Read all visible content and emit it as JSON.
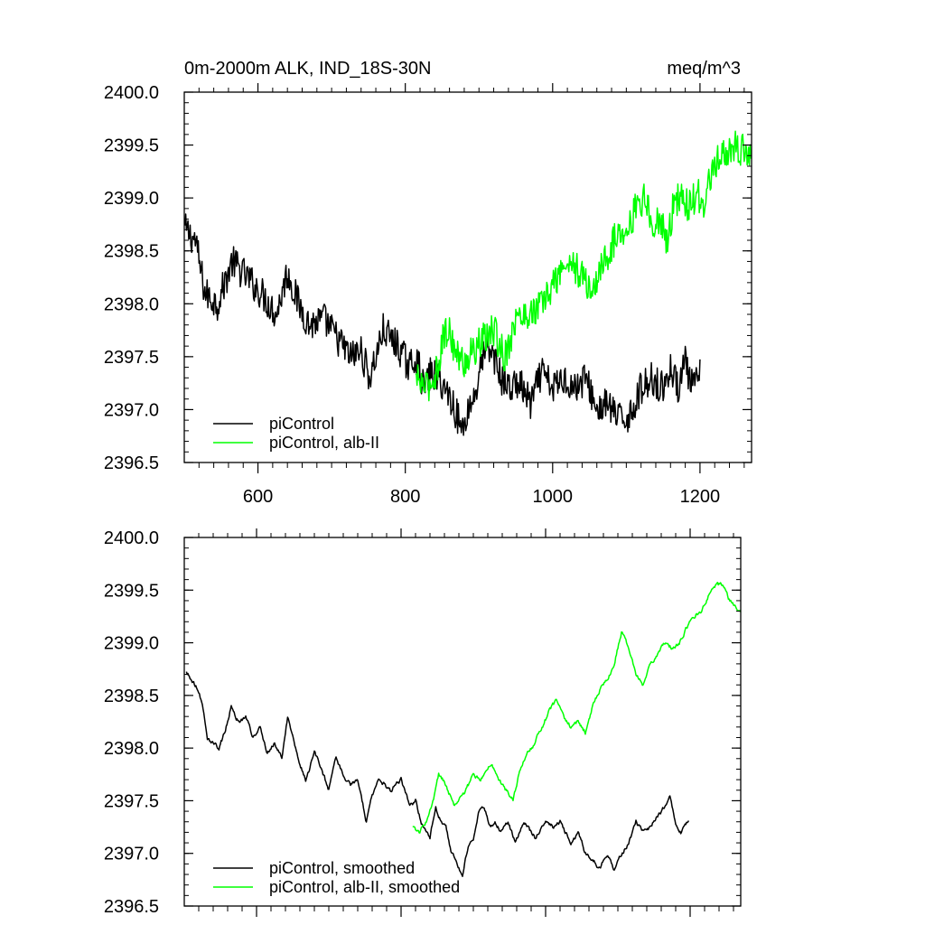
{
  "figure": {
    "title_left": "0m-2000m ALK, IND_18S-30N",
    "title_right": "meq/m^3"
  },
  "colors": {
    "piControl": "#000000",
    "alb_II": "#00ff00",
    "axes": "#000000"
  },
  "chart_data": [
    {
      "type": "line",
      "panel": "top",
      "title": "0m-2000m ALK, IND_18S-30N",
      "units": "meq/m^3",
      "xlabel": "",
      "ylabel": "",
      "xlim": [
        500,
        1270
      ],
      "ylim": [
        2396.5,
        2400.0
      ],
      "x_ticks": [
        600,
        800,
        1000,
        1200
      ],
      "x_tick_labels": [
        "600",
        "800",
        "1000",
        "1200"
      ],
      "y_ticks": [
        2396.5,
        2397.0,
        2397.5,
        2398.0,
        2398.5,
        2399.0,
        2399.5,
        2400.0
      ],
      "y_tick_labels": [
        "2396.5",
        "2397.0",
        "2397.5",
        "2398.0",
        "2398.5",
        "2399.0",
        "2399.5",
        "2400.0"
      ],
      "grid": false,
      "legend_position": "bottom-left",
      "noise": 0.16,
      "series": [
        {
          "name": "piControl",
          "color": "#000000",
          "x_start": 501,
          "x_end": 1200,
          "anchors_x": [
            501,
            515,
            528,
            545,
            565,
            585,
            605,
            625,
            640,
            655,
            670,
            690,
            710,
            725,
            740,
            752,
            770,
            790,
            805,
            815,
            825,
            835,
            850,
            862,
            870,
            877,
            885,
            895,
            905,
            918,
            930,
            942,
            955,
            970,
            985,
            1000,
            1015,
            1030,
            1045,
            1060,
            1075,
            1090,
            1105,
            1120,
            1135,
            1150,
            1160,
            1170,
            1178,
            1185,
            1192,
            1200
          ],
          "anchors_y": [
            2398.7,
            2398.6,
            2398.1,
            2398.0,
            2398.4,
            2398.25,
            2398.1,
            2397.9,
            2398.3,
            2398.0,
            2397.8,
            2397.85,
            2397.65,
            2397.5,
            2397.55,
            2397.3,
            2397.75,
            2397.6,
            2397.4,
            2397.5,
            2397.2,
            2397.35,
            2397.25,
            2397.1,
            2396.95,
            2396.8,
            2397.0,
            2397.15,
            2397.5,
            2397.55,
            2397.3,
            2397.2,
            2397.25,
            2397.05,
            2397.35,
            2397.2,
            2397.3,
            2397.2,
            2397.3,
            2397.0,
            2397.05,
            2396.9,
            2396.95,
            2397.2,
            2397.3,
            2397.2,
            2397.4,
            2397.2,
            2397.5,
            2397.3,
            2397.2,
            2397.35
          ]
        },
        {
          "name": "piControl, alb-II",
          "color": "#00ff00",
          "x_start": 814,
          "x_end": 1270,
          "anchors_x": [
            814,
            830,
            842,
            852,
            860,
            870,
            880,
            892,
            905,
            920,
            935,
            950,
            965,
            980,
            995,
            1010,
            1025,
            1040,
            1055,
            1065,
            1078,
            1090,
            1105,
            1115,
            1125,
            1135,
            1145,
            1155,
            1165,
            1175,
            1185,
            1195,
            1205,
            1215,
            1225,
            1235,
            1245,
            1255,
            1263,
            1270
          ],
          "anchors_y": [
            2397.3,
            2397.2,
            2397.35,
            2397.7,
            2397.75,
            2397.5,
            2397.45,
            2397.55,
            2397.65,
            2397.75,
            2397.5,
            2397.85,
            2397.9,
            2397.95,
            2398.1,
            2398.3,
            2398.4,
            2398.25,
            2398.1,
            2398.35,
            2398.5,
            2398.7,
            2398.75,
            2398.95,
            2399.0,
            2398.75,
            2398.8,
            2398.6,
            2398.95,
            2399.0,
            2398.9,
            2399.05,
            2398.95,
            2399.2,
            2399.35,
            2399.4,
            2399.5,
            2399.45,
            2399.45,
            2399.35
          ]
        }
      ]
    },
    {
      "type": "line",
      "panel": "bottom",
      "xlabel": "",
      "ylabel": "",
      "xlim": [
        500,
        1270
      ],
      "ylim": [
        2396.5,
        2400.0
      ],
      "x_ticks": [
        600,
        800,
        1000,
        1200
      ],
      "x_tick_labels": [],
      "y_ticks": [
        2396.5,
        2397.0,
        2397.5,
        2398.0,
        2398.5,
        2399.0,
        2399.5,
        2400.0
      ],
      "y_tick_labels": [
        "2396.5",
        "2397.0",
        "2397.5",
        "2398.0",
        "2398.5",
        "2399.0",
        "2399.5",
        "2400.0"
      ],
      "grid": false,
      "legend_position": "bottom-left",
      "noise": 0.04,
      "series": [
        {
          "name": "piControl, smoothed",
          "color": "#000000",
          "x_start": 503,
          "x_end": 1198,
          "anchors_x": [
            503,
            510,
            520,
            527,
            532,
            540,
            548,
            556,
            565,
            575,
            585,
            595,
            605,
            615,
            625,
            635,
            643,
            650,
            660,
            668,
            680,
            690,
            700,
            710,
            720,
            730,
            740,
            752,
            760,
            770,
            785,
            800,
            812,
            820,
            828,
            835,
            840,
            848,
            855,
            862,
            870,
            878,
            885,
            892,
            900,
            908,
            915,
            922,
            930,
            938,
            948,
            958,
            970,
            985,
            1000,
            1010,
            1020,
            1035,
            1045,
            1055,
            1065,
            1075,
            1085,
            1095,
            1105,
            1115,
            1125,
            1135,
            1145,
            1155,
            1165,
            1172,
            1180,
            1188,
            1198
          ],
          "anchors_y": [
            2398.72,
            2398.65,
            2398.55,
            2398.35,
            2398.1,
            2398.05,
            2398.0,
            2398.15,
            2398.4,
            2398.25,
            2398.3,
            2398.1,
            2398.2,
            2397.95,
            2398.05,
            2397.9,
            2398.3,
            2398.1,
            2397.85,
            2397.7,
            2397.95,
            2397.8,
            2397.6,
            2397.9,
            2397.75,
            2397.65,
            2397.7,
            2397.3,
            2397.55,
            2397.7,
            2397.6,
            2397.7,
            2397.45,
            2397.5,
            2397.3,
            2397.2,
            2397.15,
            2397.45,
            2397.3,
            2397.25,
            2397.0,
            2396.9,
            2396.8,
            2397.05,
            2397.15,
            2397.4,
            2397.45,
            2397.25,
            2397.3,
            2397.2,
            2397.3,
            2397.1,
            2397.3,
            2397.15,
            2397.3,
            2397.25,
            2397.3,
            2397.1,
            2397.2,
            2397.0,
            2396.95,
            2396.85,
            2397.0,
            2396.85,
            2397.0,
            2397.1,
            2397.3,
            2397.2,
            2397.25,
            2397.35,
            2397.45,
            2397.55,
            2397.3,
            2397.2,
            2397.3
          ]
        },
        {
          "name": "piControl, alb-II, smoothed",
          "color": "#00ff00",
          "x_start": 816,
          "x_end": 1270,
          "anchors_x": [
            816,
            825,
            835,
            845,
            852,
            858,
            865,
            873,
            880,
            890,
            900,
            910,
            918,
            925,
            935,
            945,
            955,
            965,
            975,
            985,
            995,
            1005,
            1015,
            1025,
            1035,
            1045,
            1055,
            1065,
            1075,
            1085,
            1095,
            1105,
            1115,
            1125,
            1135,
            1145,
            1155,
            1165,
            1175,
            1185,
            1195,
            1205,
            1215,
            1225,
            1235,
            1245,
            1255,
            1263,
            1270
          ],
          "anchors_y": [
            2397.25,
            2397.2,
            2397.3,
            2397.5,
            2397.75,
            2397.7,
            2397.6,
            2397.45,
            2397.5,
            2397.6,
            2397.75,
            2397.7,
            2397.8,
            2397.85,
            2397.7,
            2397.6,
            2397.5,
            2397.8,
            2397.95,
            2398.05,
            2398.2,
            2398.35,
            2398.45,
            2398.3,
            2398.2,
            2398.25,
            2398.15,
            2398.4,
            2398.55,
            2398.65,
            2398.8,
            2399.1,
            2398.95,
            2398.7,
            2398.6,
            2398.8,
            2398.9,
            2399.0,
            2398.95,
            2399.0,
            2399.15,
            2399.25,
            2399.3,
            2399.45,
            2399.55,
            2399.55,
            2399.4,
            2399.35,
            2399.3
          ]
        }
      ]
    }
  ]
}
